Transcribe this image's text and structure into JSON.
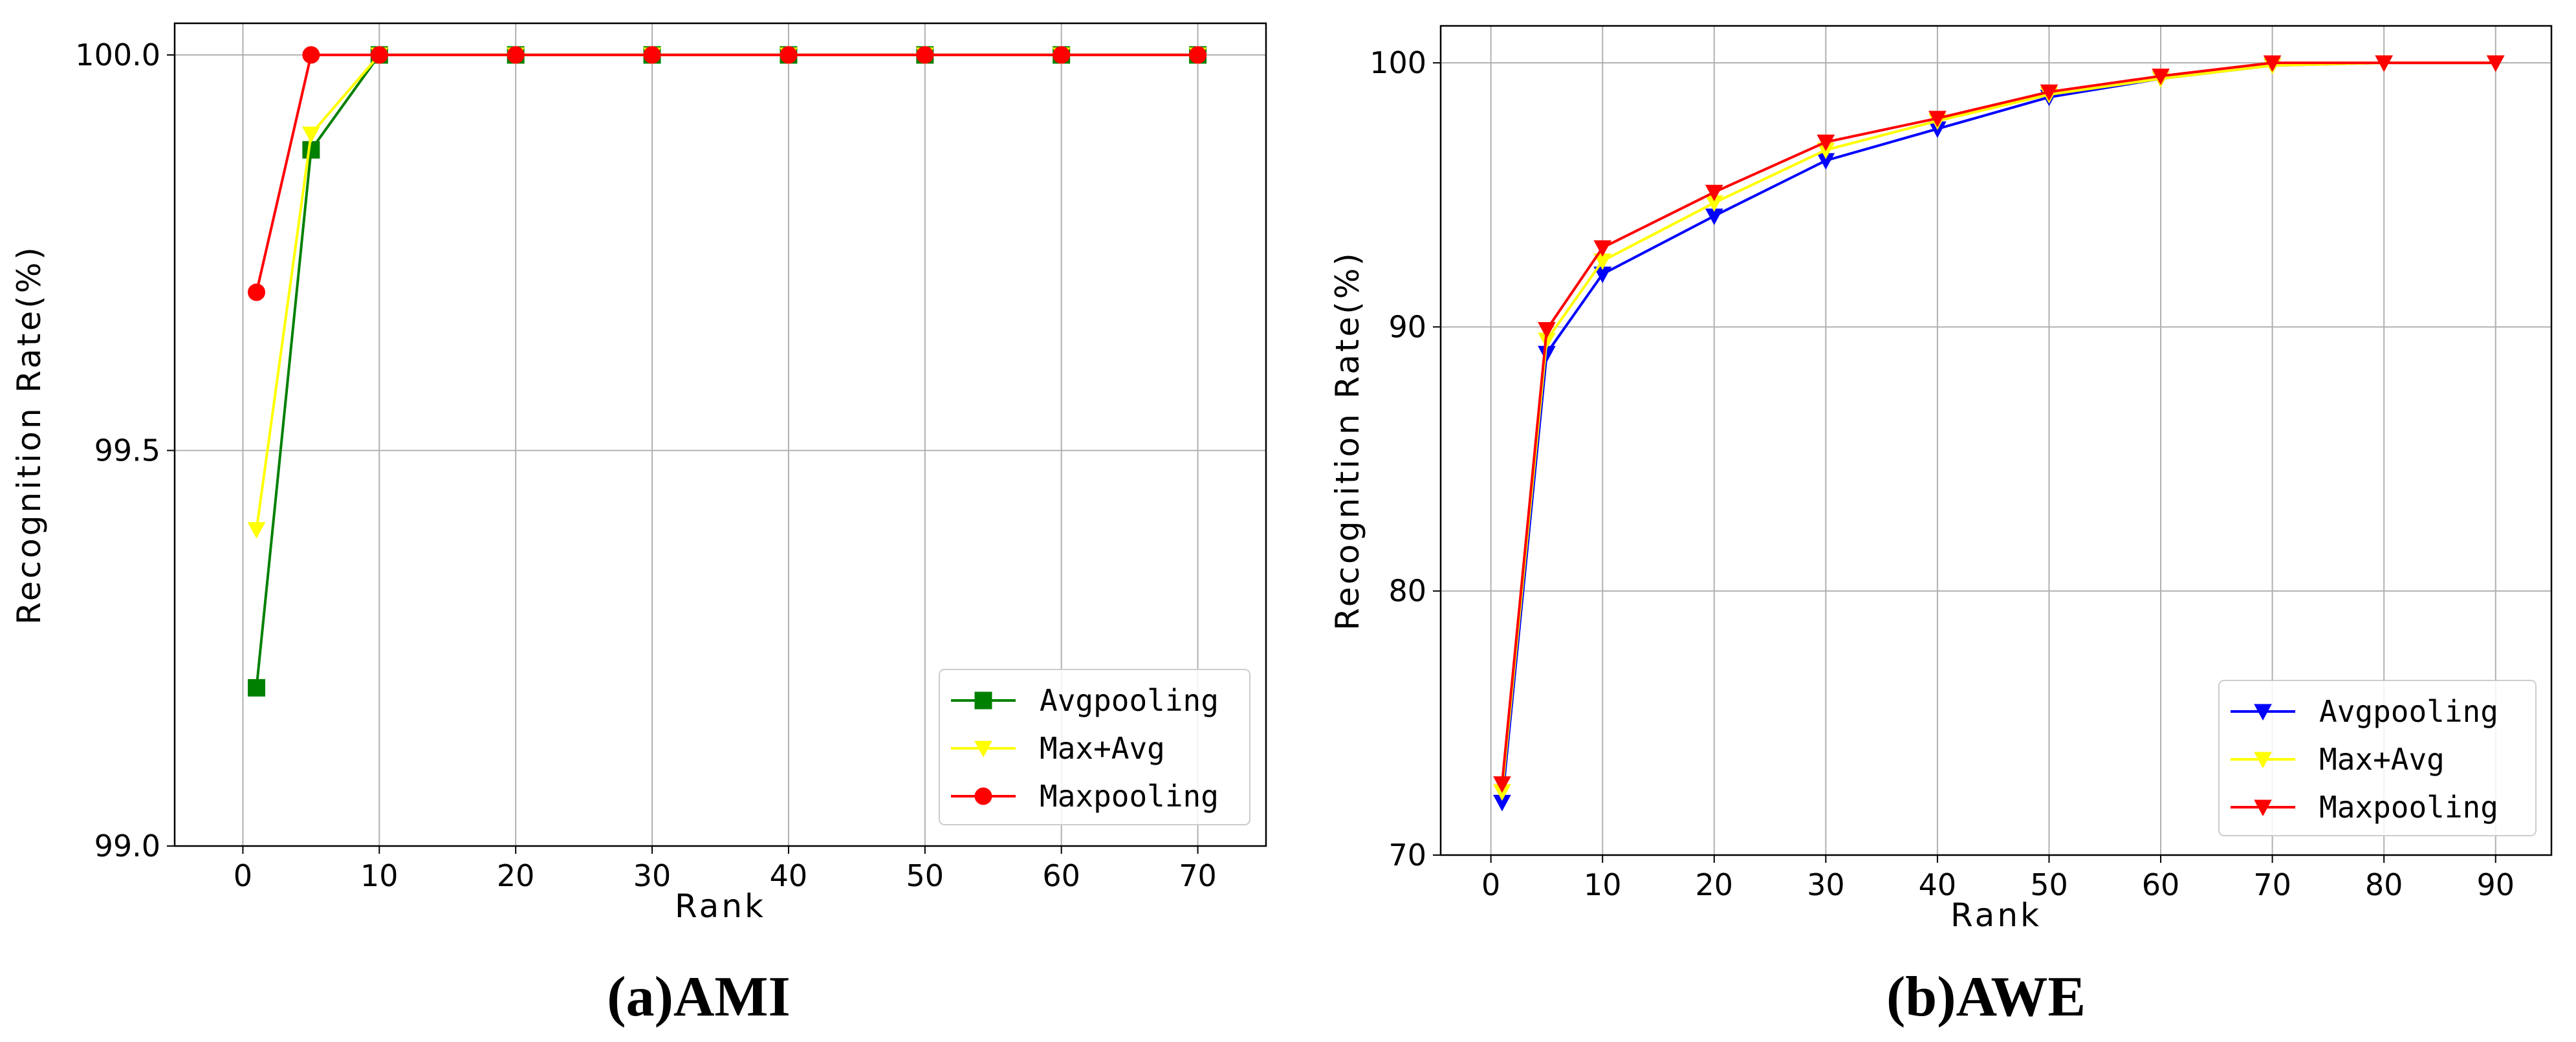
{
  "chart_data": [
    {
      "type": "line",
      "caption": "(a)AMI",
      "xlabel": "Rank",
      "ylabel": "Recognition Rate(%)",
      "xlim": [
        -5,
        75
      ],
      "ylim": [
        99.0,
        100.04
      ],
      "xticks": [
        "0",
        "10",
        "20",
        "30",
        "40",
        "50",
        "60",
        "70"
      ],
      "yticks": [
        "99.0",
        "99.5",
        "100.0"
      ],
      "grid": true,
      "legend_position": "lower-right",
      "x": [
        1,
        5,
        10,
        20,
        30,
        40,
        50,
        60,
        70
      ],
      "series": [
        {
          "name": "Avgpooling",
          "color": "#008000",
          "marker": "square",
          "values": [
            99.2,
            99.88,
            100.0,
            100.0,
            100.0,
            100.0,
            100.0,
            100.0,
            100.0
          ]
        },
        {
          "name": "Max+Avg",
          "color": "#ffff00",
          "marker": "triangle-down",
          "values": [
            99.4,
            99.9,
            100.0,
            100.0,
            100.0,
            100.0,
            100.0,
            100.0,
            100.0
          ]
        },
        {
          "name": "Maxpooling",
          "color": "#ff0000",
          "marker": "circle",
          "values": [
            99.7,
            100.0,
            100.0,
            100.0,
            100.0,
            100.0,
            100.0,
            100.0,
            100.0
          ]
        }
      ]
    },
    {
      "type": "line",
      "caption": "(b)AWE",
      "xlabel": "Rank",
      "ylabel": "Recognition Rate(%)",
      "xlim": [
        -4.5,
        95
      ],
      "ylim": [
        70,
        101.4
      ],
      "xticks": [
        "0",
        "10",
        "20",
        "30",
        "40",
        "50",
        "60",
        "70",
        "80",
        "90"
      ],
      "yticks": [
        "70",
        "80",
        "90",
        "100"
      ],
      "grid": true,
      "legend_position": "lower-right",
      "x": [
        1,
        5,
        10,
        20,
        30,
        40,
        50,
        60,
        70,
        80,
        90
      ],
      "series": [
        {
          "name": "Avgpooling",
          "color": "#0000ff",
          "marker": "triangle-down",
          "values": [
            72.0,
            89.0,
            92.0,
            94.2,
            96.3,
            97.5,
            98.7,
            99.4,
            99.9,
            100.0,
            100.0
          ]
        },
        {
          "name": "Max+Avg",
          "color": "#ffff00",
          "marker": "triangle-down",
          "values": [
            72.4,
            89.5,
            92.5,
            94.7,
            96.7,
            97.8,
            98.8,
            99.4,
            99.9,
            100.0,
            100.0
          ]
        },
        {
          "name": "Maxpooling",
          "color": "#ff0000",
          "marker": "triangle-down",
          "values": [
            72.7,
            89.9,
            93.0,
            95.1,
            97.0,
            97.9,
            98.9,
            99.5,
            100.0,
            100.0,
            100.0
          ]
        }
      ]
    }
  ]
}
